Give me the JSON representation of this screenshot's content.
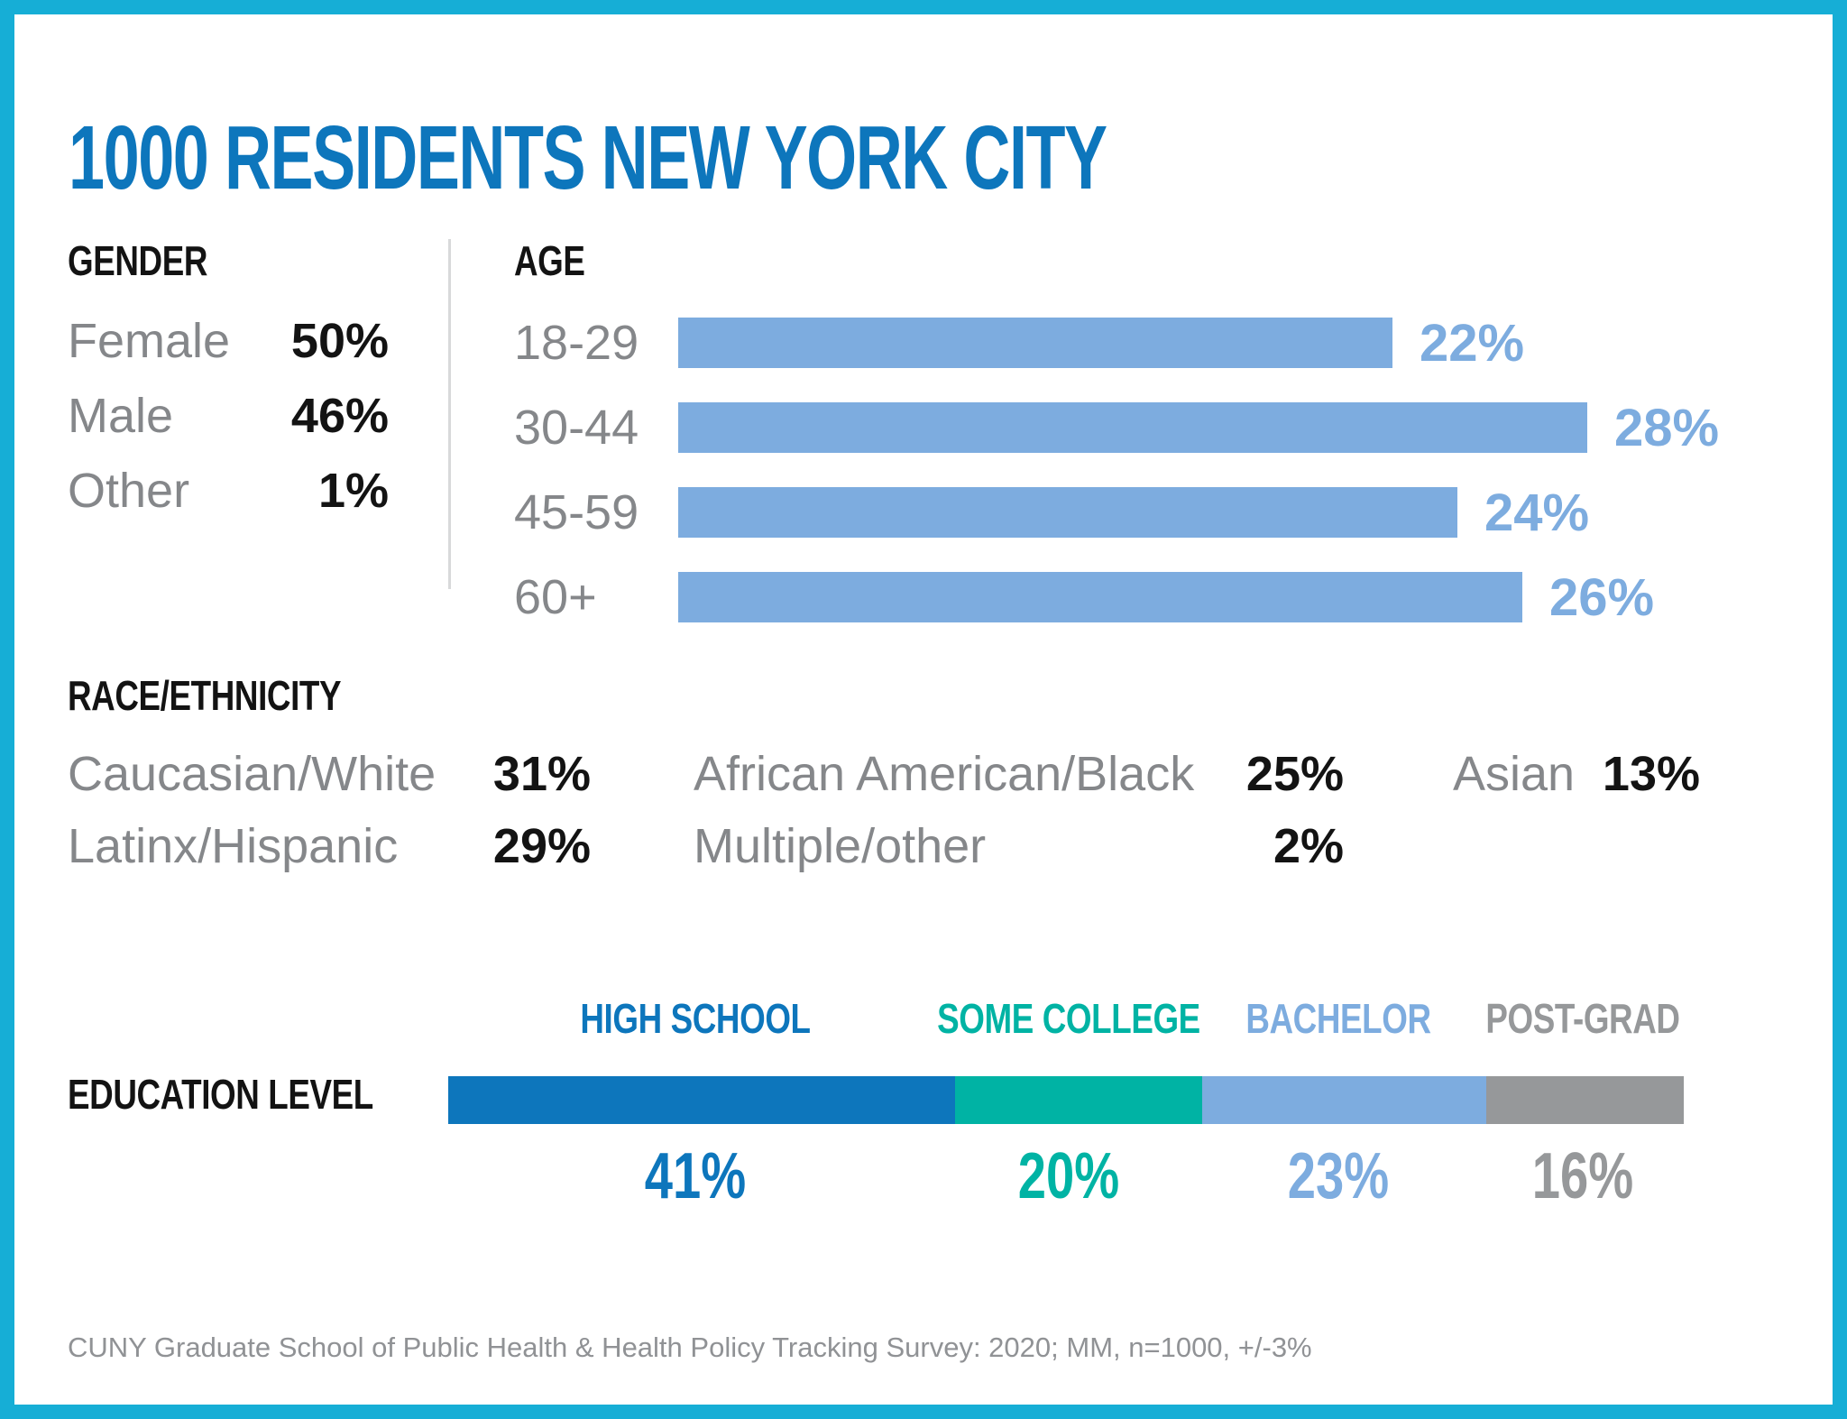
{
  "page": {
    "title": "1000 RESIDENTS NEW YORK CITY",
    "title_color": "#0d76bc",
    "border_color": "#16aed6",
    "background_color": "#ffffff",
    "text_color": "#131313",
    "muted_label_color": "#85878a",
    "divider_color": "#d8d9da",
    "footer": "CUNY Graduate School of Public Health & Health Policy Tracking Survey: 2020; MM, n=1000, +/-3%",
    "footer_color": "#909295"
  },
  "gender": {
    "heading": "GENDER",
    "rows": [
      {
        "label": "Female",
        "value": "50%"
      },
      {
        "label": "Male",
        "value": "46%"
      },
      {
        "label": "Other",
        "value": "1%"
      }
    ]
  },
  "age": {
    "heading": "AGE",
    "bar_color": "#7dacdf",
    "rows": [
      {
        "label": "18-29",
        "value": 22,
        "display": "22%"
      },
      {
        "label": "30-44",
        "value": 28,
        "display": "28%"
      },
      {
        "label": "45-59",
        "value": 24,
        "display": "24%"
      },
      {
        "label": "60+",
        "value": 26,
        "display": "26%"
      }
    ]
  },
  "race": {
    "heading": "RACE/ETHNICITY",
    "items": [
      {
        "label": "Caucasian/White",
        "value": "31%"
      },
      {
        "label": "African American/Black",
        "value": "25%"
      },
      {
        "label": "Asian",
        "value": "13%"
      },
      {
        "label": "Latinx/Hispanic",
        "value": "29%"
      },
      {
        "label": "Multiple/other",
        "value": "2%"
      }
    ]
  },
  "education": {
    "heading": "EDUCATION LEVEL",
    "segments": [
      {
        "label": "HIGH SCHOOL",
        "value": 41,
        "display": "41%",
        "color": "#0d76bc"
      },
      {
        "label": "SOME COLLEGE",
        "value": 20,
        "display": "20%",
        "color": "#00b3a4"
      },
      {
        "label": "BACHELOR",
        "value": 23,
        "display": "23%",
        "color": "#7dacdf"
      },
      {
        "label": "POST-GRAD",
        "value": 16,
        "display": "16%",
        "color": "#96989a"
      }
    ]
  },
  "chart_data": [
    {
      "type": "bar",
      "orientation": "horizontal",
      "title": "AGE",
      "categories": [
        "18-29",
        "30-44",
        "45-59",
        "60+"
      ],
      "values": [
        22,
        28,
        24,
        26
      ],
      "unit": "%",
      "xlim": [
        0,
        30
      ],
      "grid": false,
      "bar_color": "#7dacdf",
      "value_labels": "right of bars"
    },
    {
      "type": "bar",
      "stacked": true,
      "orientation": "horizontal",
      "title": "EDUCATION LEVEL",
      "categories": [
        "HIGH SCHOOL",
        "SOME COLLEGE",
        "BACHELOR",
        "POST-GRAD"
      ],
      "values": [
        41,
        20,
        23,
        16
      ],
      "unit": "%",
      "colors": [
        "#0d76bc",
        "#00b3a4",
        "#7dacdf",
        "#96989a"
      ],
      "legend_position": "labels above segments, values below segments"
    },
    {
      "type": "table",
      "title": "GENDER",
      "rows": [
        [
          "Female",
          "50%"
        ],
        [
          "Male",
          "46%"
        ],
        [
          "Other",
          "1%"
        ]
      ]
    },
    {
      "type": "table",
      "title": "RACE/ETHNICITY",
      "rows": [
        [
          "Caucasian/White",
          "31%"
        ],
        [
          "African American/Black",
          "25%"
        ],
        [
          "Asian",
          "13%"
        ],
        [
          "Latinx/Hispanic",
          "29%"
        ],
        [
          "Multiple/other",
          "2%"
        ]
      ]
    }
  ]
}
